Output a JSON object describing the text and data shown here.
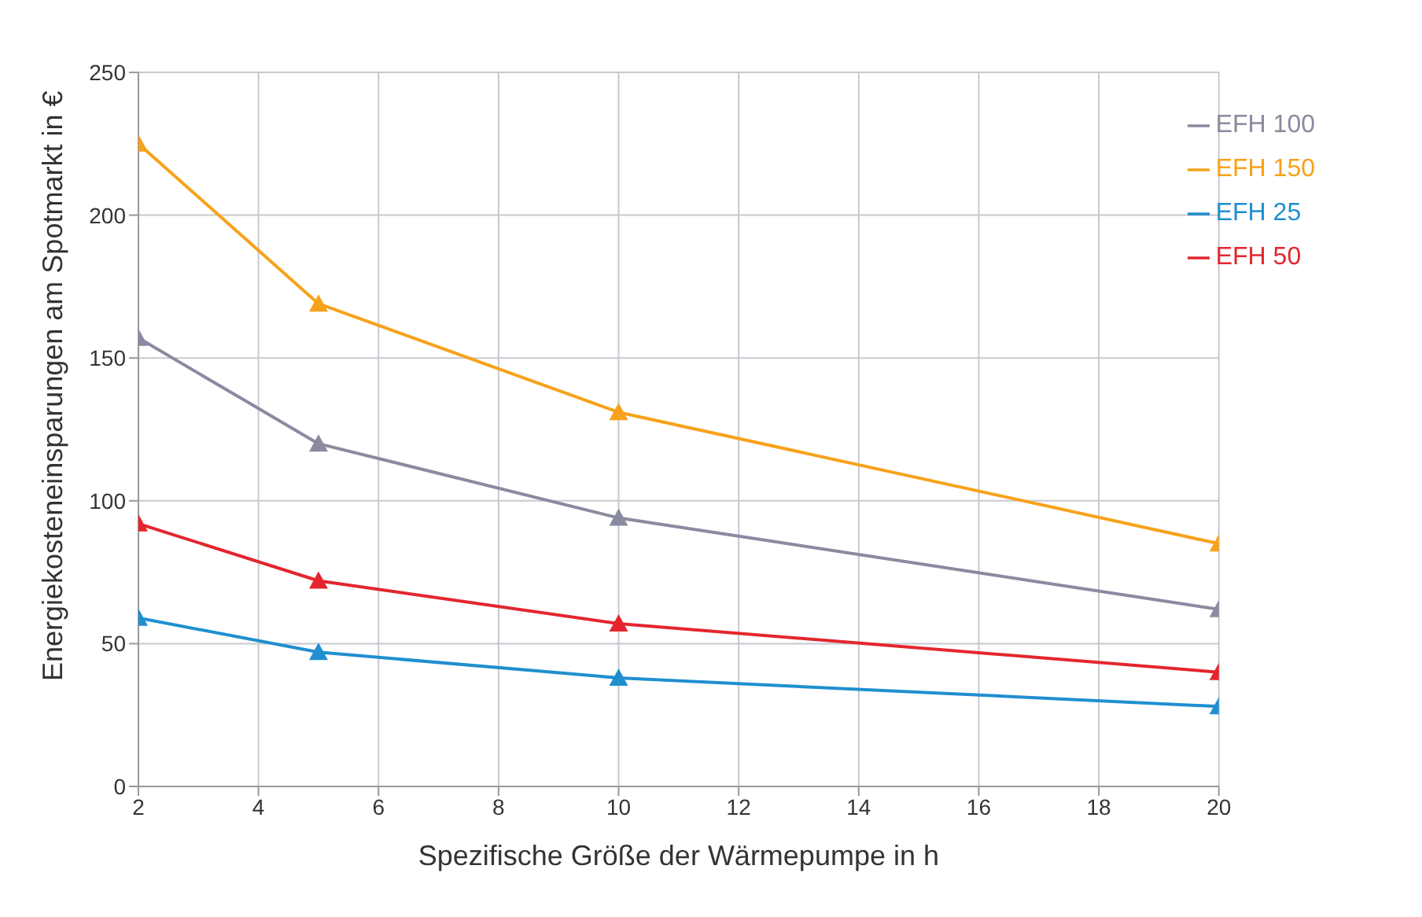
{
  "chart_data": {
    "type": "line",
    "xlabel": "Spezifische Größe der Wärmepumpe in h",
    "ylabel": "Energiekosteneinsparungen am Spotmarkt in €",
    "x": [
      2,
      5,
      10,
      20
    ],
    "series": [
      {
        "name": "EFH 25",
        "color": "#1f8fcf",
        "values": [
          59,
          47,
          38,
          28
        ]
      },
      {
        "name": "EFH 50",
        "color": "#e3262e",
        "values": [
          92,
          72,
          57,
          40
        ]
      },
      {
        "name": "EFH 100",
        "color": "#8a8aa0",
        "values": [
          157,
          120,
          94,
          62
        ]
      },
      {
        "name": "EFH 150",
        "color": "#f7a21b",
        "values": [
          225,
          169,
          131,
          85
        ]
      }
    ],
    "xlim": [
      2,
      20
    ],
    "xticks": [
      2,
      4,
      6,
      8,
      10,
      12,
      14,
      16,
      18,
      20
    ],
    "ylim": [
      0,
      250
    ],
    "yticks": [
      0,
      50,
      100,
      150,
      200,
      250
    ],
    "grid": true,
    "legend": "top right",
    "marker": "triangle",
    "line_style": "solid"
  }
}
